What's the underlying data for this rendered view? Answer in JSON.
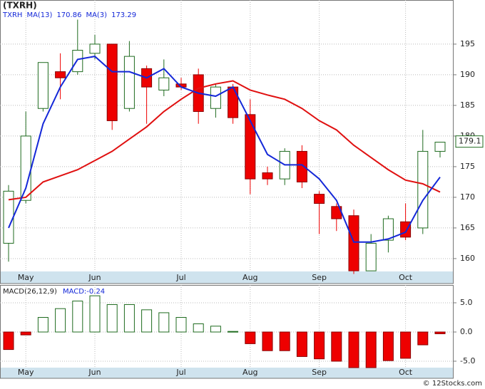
{
  "chart_data": [
    {
      "type": "candlestick",
      "title": "(TXRH)",
      "legend_title": "TXRH",
      "categories": [
        null,
        "May",
        null,
        null,
        null,
        "Jun",
        null,
        null,
        null,
        null,
        "Jul",
        null,
        null,
        null,
        "Aug",
        null,
        null,
        null,
        "Sep",
        null,
        null,
        null,
        null,
        "Oct",
        null,
        null
      ],
      "open": [
        162.5,
        169.5,
        184.5,
        190.5,
        190.5,
        193.5,
        195,
        184.5,
        191,
        187.5,
        188.5,
        190,
        184.5,
        188,
        183.5,
        174,
        173,
        177.5,
        170.5,
        168.5,
        167,
        158,
        163,
        166,
        165,
        177.5
      ],
      "high": [
        172,
        184,
        192,
        193.5,
        199,
        196.5,
        195,
        195.5,
        191.5,
        192.5,
        189.5,
        191,
        188.5,
        188.5,
        186,
        175,
        178,
        178.5,
        171,
        169,
        168,
        164,
        167,
        169,
        181,
        179
      ],
      "low": [
        159.5,
        169,
        184,
        186,
        190,
        192.5,
        181,
        184,
        182,
        186.5,
        187.5,
        182,
        183,
        182,
        170.5,
        172,
        172,
        171.5,
        164,
        164.5,
        157.5,
        158,
        161,
        163,
        164,
        176.5
      ],
      "close": [
        171,
        180,
        192,
        189.5,
        194,
        195,
        182.5,
        193,
        188,
        189.5,
        188,
        184,
        188,
        183,
        173,
        173,
        177.5,
        172.5,
        169,
        166.5,
        158,
        162.5,
        166.5,
        163.5,
        177.5,
        179
      ],
      "up_color": "#1f6b1f",
      "down_color": "#ee0000",
      "series": [
        {
          "name": "MA(13)",
          "legend_value": 170.86,
          "color": "#e01010",
          "values": [
            169.6,
            170,
            172.5,
            173.5,
            174.5,
            176,
            177.5,
            179.5,
            181.5,
            184,
            186,
            187.8,
            188.5,
            189,
            187.5,
            186.7,
            186,
            184.5,
            182.5,
            181,
            178.5,
            176.5,
            174.5,
            172.8,
            172.2,
            170.86
          ]
        },
        {
          "name": "MA(3)",
          "legend_value": 173.29,
          "color": "#1428d8",
          "values": [
            165,
            171.5,
            182,
            188,
            192.5,
            193,
            190.5,
            190.5,
            189.5,
            191,
            188,
            187,
            186.5,
            188,
            182.5,
            177,
            175.3,
            175.3,
            173,
            169.5,
            162.7,
            162.7,
            163.2,
            164.3,
            169.5,
            173.29
          ]
        }
      ],
      "last_price": 179.1,
      "ylim": [
        157.9,
        202.2
      ],
      "yticks": [
        160,
        165,
        170,
        175,
        180,
        185,
        190,
        195
      ],
      "grid": true
    },
    {
      "type": "bar",
      "legend_title": "MACD(26,12,9)",
      "legend_value": "MACD:-0.24",
      "values": [
        -3.0,
        -0.5,
        2.5,
        4.0,
        5.3,
        6.2,
        4.7,
        4.7,
        3.8,
        3.3,
        2.5,
        1.4,
        1.0,
        0.1,
        -2.0,
        -3.2,
        -3.2,
        -4.2,
        -4.6,
        -5.0,
        -6.1,
        -6.1,
        -4.9,
        -4.5,
        -2.2,
        -0.3
      ],
      "up_color": "#1f6b1f",
      "down_color": "#ee0000",
      "ylim": [
        -6.1,
        8.05
      ],
      "yticks": [
        {
          "value": -5,
          "label": "-5.0"
        },
        {
          "value": 0,
          "label": "0.0"
        },
        {
          "value": 5,
          "label": "5.0"
        }
      ],
      "grid": true
    }
  ],
  "footer": "© 12Stocks.com"
}
